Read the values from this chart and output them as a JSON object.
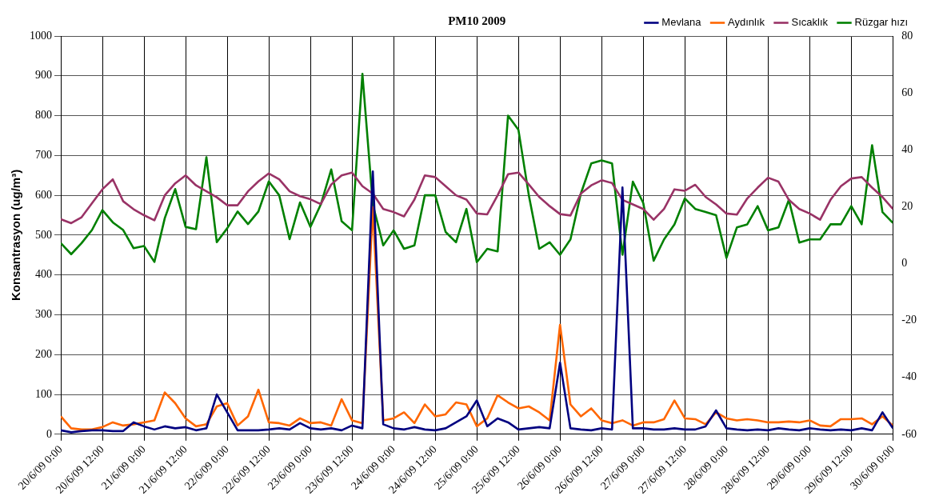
{
  "chart_data": {
    "type": "line",
    "title": "PM10 2009",
    "ylabel": "Konsantrasyon (ug/m³)",
    "x": [
      "2009-06-20T00:00",
      "2009-06-20T03:00",
      "2009-06-20T06:00",
      "2009-06-20T09:00",
      "2009-06-20T12:00",
      "2009-06-20T15:00",
      "2009-06-20T18:00",
      "2009-06-20T21:00",
      "2009-06-21T00:00",
      "2009-06-21T03:00",
      "2009-06-21T06:00",
      "2009-06-21T09:00",
      "2009-06-21T12:00",
      "2009-06-21T15:00",
      "2009-06-21T18:00",
      "2009-06-21T21:00",
      "2009-06-22T00:00",
      "2009-06-22T03:00",
      "2009-06-22T06:00",
      "2009-06-22T09:00",
      "2009-06-22T12:00",
      "2009-06-22T15:00",
      "2009-06-22T18:00",
      "2009-06-22T21:00",
      "2009-06-23T00:00",
      "2009-06-23T03:00",
      "2009-06-23T06:00",
      "2009-06-23T09:00",
      "2009-06-23T12:00",
      "2009-06-23T15:00",
      "2009-06-23T18:00",
      "2009-06-23T21:00",
      "2009-06-24T00:00",
      "2009-06-24T03:00",
      "2009-06-24T06:00",
      "2009-06-24T09:00",
      "2009-06-24T12:00",
      "2009-06-24T15:00",
      "2009-06-24T18:00",
      "2009-06-24T21:00",
      "2009-06-25T00:00",
      "2009-06-25T03:00",
      "2009-06-25T06:00",
      "2009-06-25T09:00",
      "2009-06-25T12:00",
      "2009-06-25T15:00",
      "2009-06-25T18:00",
      "2009-06-25T21:00",
      "2009-06-26T00:00",
      "2009-06-26T03:00",
      "2009-06-26T06:00",
      "2009-06-26T09:00",
      "2009-06-26T12:00",
      "2009-06-26T15:00",
      "2009-06-26T18:00",
      "2009-06-26T21:00",
      "2009-06-27T00:00",
      "2009-06-27T03:00",
      "2009-06-27T06:00",
      "2009-06-27T09:00",
      "2009-06-27T12:00",
      "2009-06-27T15:00",
      "2009-06-27T18:00",
      "2009-06-27T21:00",
      "2009-06-28T00:00",
      "2009-06-28T03:00",
      "2009-06-28T06:00",
      "2009-06-28T09:00",
      "2009-06-28T12:00",
      "2009-06-28T15:00",
      "2009-06-28T18:00",
      "2009-06-28T21:00",
      "2009-06-29T00:00",
      "2009-06-29T03:00",
      "2009-06-29T06:00",
      "2009-06-29T09:00",
      "2009-06-29T12:00",
      "2009-06-29T15:00",
      "2009-06-29T18:00",
      "2009-06-29T21:00",
      "2009-06-30T00:00"
    ],
    "series": [
      {
        "name": "Mevlana",
        "color": "#000080",
        "values": [
          10,
          5,
          8,
          10,
          10,
          8,
          8,
          30,
          20,
          12,
          20,
          15,
          18,
          10,
          15,
          100,
          55,
          10,
          10,
          10,
          12,
          15,
          12,
          28,
          15,
          12,
          15,
          10,
          22,
          15,
          660,
          25,
          15,
          12,
          18,
          12,
          10,
          15,
          30,
          45,
          85,
          20,
          40,
          30,
          12,
          15,
          18,
          15,
          180,
          15,
          12,
          10,
          15,
          12,
          620,
          15,
          15,
          12,
          12,
          15,
          12,
          12,
          20,
          60,
          15,
          12,
          10,
          12,
          10,
          15,
          12,
          10,
          15,
          12,
          10,
          12,
          10,
          15,
          10,
          55,
          15
        ]
      },
      {
        "name": "Aydınlık",
        "color": "#ff6600",
        "values": [
          45,
          15,
          12,
          12,
          18,
          30,
          22,
          25,
          30,
          35,
          105,
          78,
          40,
          20,
          25,
          70,
          78,
          22,
          45,
          112,
          30,
          28,
          22,
          40,
          28,
          30,
          22,
          88,
          35,
          28,
          570,
          35,
          40,
          55,
          28,
          75,
          45,
          50,
          80,
          75,
          20,
          40,
          98,
          80,
          65,
          70,
          55,
          35,
          275,
          75,
          45,
          65,
          35,
          28,
          35,
          22,
          30,
          30,
          38,
          85,
          40,
          38,
          25,
          55,
          40,
          35,
          38,
          35,
          30,
          30,
          32,
          30,
          35,
          22,
          20,
          38,
          38,
          40,
          25,
          45,
          22
        ]
      },
      {
        "name": "Sıcaklık",
        "color": "#993366",
        "axis": "y2",
        "values": [
          15.6,
          14.2,
          16.3,
          21.2,
          26.1,
          29.6,
          21.9,
          19.1,
          17,
          15.2,
          24,
          28.2,
          31,
          27.5,
          25.4,
          23.3,
          20.5,
          20.5,
          25.4,
          28.9,
          31.7,
          29.6,
          25.4,
          23.7,
          22.6,
          20.9,
          27.8,
          31,
          32,
          27.2,
          24.6,
          19.2,
          18.1,
          16.6,
          22.5,
          31,
          30.4,
          27.2,
          24,
          22.5,
          17.6,
          17.3,
          24,
          31.4,
          32,
          27.8,
          23.4,
          20.2,
          17.4,
          16.9,
          24.6,
          27.5,
          29.3,
          28.3,
          22.4,
          20.8,
          19.2,
          15.4,
          19.2,
          26.1,
          25.6,
          27.7,
          23.4,
          20.8,
          17.6,
          17.2,
          22.9,
          26.7,
          30.2,
          28.8,
          22.4,
          19.2,
          17.6,
          15.4,
          22.4,
          27.2,
          29.9,
          30.4,
          26.7,
          23.4,
          19.2
        ]
      },
      {
        "name": "Rüzgar hızı",
        "color": "#008000",
        "axis": "y2",
        "values": [
          7.2,
          3.3,
          7.2,
          11.8,
          18.8,
          14.5,
          11.8,
          5.4,
          6.2,
          0.6,
          16,
          26.2,
          12.9,
          12.1,
          37.4,
          7.5,
          12.4,
          18.3,
          13.9,
          18.3,
          28.9,
          24,
          8.6,
          21.5,
          12.9,
          20.8,
          33.1,
          14.9,
          11.7,
          66.7,
          20.8,
          6.4,
          11.7,
          5.2,
          6.4,
          24,
          24,
          11.1,
          7.5,
          19.2,
          0.5,
          5.2,
          4.3,
          52,
          47,
          24,
          5.2,
          7.5,
          3.1,
          8.5,
          24.6,
          35.2,
          36.3,
          35.2,
          3.1,
          28.8,
          21.3,
          1,
          8.5,
          13.8,
          22.9,
          19.2,
          18.1,
          17,
          2,
          12.7,
          13.8,
          20.2,
          11.7,
          12.7,
          22.4,
          7.4,
          8.5,
          8.5,
          13.8,
          13.8,
          20.2,
          13.8,
          41.6,
          18.1,
          14.3
        ]
      }
    ],
    "xlim": [
      "2009-06-20T00:00",
      "2009-06-30T00:00"
    ],
    "xticks": [
      {
        "value": "2009-06-20T00:00",
        "label": "20/6/09 0:00"
      },
      {
        "value": "2009-06-20T12:00",
        "label": "20/6/09 12:00"
      },
      {
        "value": "2009-06-21T00:00",
        "label": "21/6/09 0:00"
      },
      {
        "value": "2009-06-21T12:00",
        "label": "21/6/09 12:00"
      },
      {
        "value": "2009-06-22T00:00",
        "label": "22/6/09 0:00"
      },
      {
        "value": "2009-06-22T12:00",
        "label": "22/6/09 12:00"
      },
      {
        "value": "2009-06-23T00:00",
        "label": "23/6/09 0:00"
      },
      {
        "value": "2009-06-23T12:00",
        "label": "23/6/09 12:00"
      },
      {
        "value": "2009-06-24T00:00",
        "label": "24/6/09 0:00"
      },
      {
        "value": "2009-06-24T12:00",
        "label": "24/6/09 12:00"
      },
      {
        "value": "2009-06-25T00:00",
        "label": "25/6/09 0:00"
      },
      {
        "value": "2009-06-25T12:00",
        "label": "25/6/09 12:00"
      },
      {
        "value": "2009-06-26T00:00",
        "label": "26/6/09 0:00"
      },
      {
        "value": "2009-06-26T12:00",
        "label": "26/6/09 12:00"
      },
      {
        "value": "2009-06-27T00:00",
        "label": "27/6/09 0:00"
      },
      {
        "value": "2009-06-27T12:00",
        "label": "27/6/09 12:00"
      },
      {
        "value": "2009-06-28T00:00",
        "label": "28/6/09 0:00"
      },
      {
        "value": "2009-06-28T12:00",
        "label": "28/6/09 12:00"
      },
      {
        "value": "2009-06-29T00:00",
        "label": "29/6/09 0:00"
      },
      {
        "value": "2009-06-29T12:00",
        "label": "29/6/09 12:00"
      },
      {
        "value": "2009-06-30T00:00",
        "label": "30/6/09 0:00"
      }
    ],
    "ylim": [
      0,
      1000
    ],
    "yticks": [
      0,
      100,
      200,
      300,
      400,
      500,
      600,
      700,
      800,
      900,
      1000
    ],
    "y2lim": [
      -60,
      80
    ],
    "y2ticks": [
      -60,
      -40,
      -20,
      0,
      20,
      40,
      60,
      80
    ],
    "grid": true,
    "legend": "top right",
    "marker": "none",
    "line_style": "solid"
  }
}
